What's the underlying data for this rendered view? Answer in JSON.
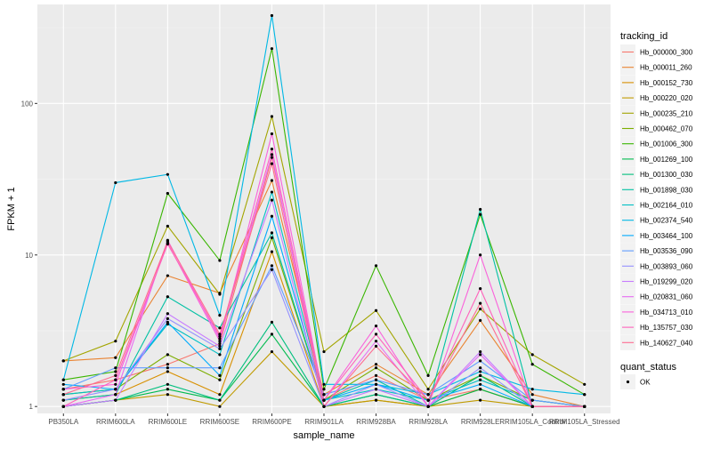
{
  "chart_data": {
    "type": "line",
    "xlabel": "sample_name",
    "ylabel": "FPKM + 1",
    "y_scale": "log10",
    "ylim": [
      0.9,
      450
    ],
    "y_ticks": [
      {
        "value": 1,
        "label": "1"
      },
      {
        "value": 10,
        "label": "10"
      },
      {
        "value": 100,
        "label": "100"
      }
    ],
    "categories": [
      "PB350LA",
      "RRIM600LA",
      "RRIM600LE",
      "RRIM600SE",
      "RRIM600PE",
      "RRIM901LA",
      "RRIM928BA",
      "RRIM928LA",
      "RRIM928LE",
      "RRIM105LA_Control",
      "RRIM105LA_Stressed"
    ],
    "grid": true,
    "legend": {
      "title": "tracking_id",
      "position": "right"
    },
    "shape_legend": {
      "title": "quant_status",
      "items": [
        {
          "label": "OK"
        }
      ]
    },
    "series": [
      {
        "name": "Hb_000000_300",
        "color": "#F8766D",
        "values": [
          1.3,
          1.5,
          1.9,
          2.6,
          44,
          1.1,
          1.6,
          1.1,
          1.3,
          1.0,
          1.0
        ]
      },
      {
        "name": "Hb_000011_260",
        "color": "#EA8331",
        "values": [
          2.0,
          2.1,
          7.3,
          5.6,
          31,
          1.2,
          1.9,
          1.2,
          3.7,
          1.2,
          1.0
        ]
      },
      {
        "name": "Hb_000152_730",
        "color": "#D89000",
        "values": [
          1.1,
          1.2,
          1.7,
          1.2,
          10.5,
          1.0,
          1.1,
          1.0,
          1.3,
          1.0,
          1.0
        ]
      },
      {
        "name": "Hb_000220_020",
        "color": "#C09B00",
        "values": [
          1.0,
          1.1,
          1.2,
          1.0,
          2.3,
          1.0,
          1.1,
          1.0,
          1.1,
          1.0,
          1.0
        ]
      },
      {
        "name": "Hb_000235_210",
        "color": "#A3A500",
        "values": [
          2.0,
          2.7,
          15.5,
          5.5,
          82,
          2.3,
          4.3,
          1.3,
          4.4,
          2.2,
          1.4
        ]
      },
      {
        "name": "Hb_000462_070",
        "color": "#7CAE00",
        "values": [
          1.2,
          1.3,
          2.2,
          1.5,
          13,
          1.1,
          1.8,
          1.1,
          1.6,
          1.1,
          1.0
        ]
      },
      {
        "name": "Hb_001006_300",
        "color": "#39B600",
        "values": [
          1.5,
          1.7,
          25.5,
          9.2,
          230,
          1.3,
          8.5,
          1.6,
          18.5,
          1.9,
          1.2
        ]
      },
      {
        "name": "Hb_001269_100",
        "color": "#00BB4E",
        "values": [
          1.0,
          1.1,
          1.3,
          1.1,
          3.0,
          1.0,
          1.2,
          1.0,
          1.3,
          1.0,
          1.0
        ]
      },
      {
        "name": "Hb_001300_030",
        "color": "#00BF7D",
        "values": [
          1.0,
          1.1,
          1.4,
          1.1,
          3.6,
          1.0,
          1.2,
          1.0,
          1.6,
          1.0,
          1.0
        ]
      },
      {
        "name": "Hb_001898_030",
        "color": "#00C1A3",
        "values": [
          1.1,
          1.2,
          5.3,
          3.3,
          14,
          1.1,
          1.5,
          1.0,
          20,
          1.0,
          1.0
        ]
      },
      {
        "name": "Hb_002164_010",
        "color": "#00BFC4",
        "values": [
          1.2,
          1.3,
          3.5,
          2.2,
          26,
          1.1,
          1.3,
          1.1,
          1.5,
          1.1,
          1.0
        ]
      },
      {
        "name": "Hb_002374_540",
        "color": "#00B8E5",
        "values": [
          1.5,
          30,
          34,
          4.0,
          380,
          1.4,
          1.4,
          1.2,
          1.7,
          1.3,
          1.2
        ]
      },
      {
        "name": "Hb_003464_100",
        "color": "#00ABFD",
        "values": [
          1.4,
          1.3,
          3.6,
          1.6,
          18,
          1.1,
          1.4,
          1.1,
          1.4,
          1.0,
          1.0
        ]
      },
      {
        "name": "Hb_003536_090",
        "color": "#619CFF",
        "values": [
          1.3,
          1.8,
          1.8,
          1.8,
          8.5,
          1.2,
          1.5,
          1.2,
          2.0,
          1.1,
          1.0
        ]
      },
      {
        "name": "Hb_003893_060",
        "color": "#9590FF",
        "values": [
          1.1,
          1.3,
          3.8,
          2.4,
          8.0,
          1.0,
          1.4,
          1.0,
          1.8,
          1.0,
          1.0
        ]
      },
      {
        "name": "Hb_019299_020",
        "color": "#C77CFF",
        "values": [
          1.0,
          1.1,
          4.1,
          2.5,
          23,
          1.0,
          1.3,
          1.0,
          2.3,
          1.0,
          1.0
        ]
      },
      {
        "name": "Hb_020831_060",
        "color": "#E76BF3",
        "values": [
          1.0,
          1.2,
          12.5,
          2.8,
          46,
          1.0,
          2.7,
          1.0,
          2.2,
          1.0,
          1.0
        ]
      },
      {
        "name": "Hb_034713_010",
        "color": "#FA62DB",
        "values": [
          1.3,
          1.4,
          12.0,
          2.7,
          63,
          1.1,
          3.4,
          1.0,
          10.0,
          1.0,
          1.0
        ]
      },
      {
        "name": "Hb_135757_030",
        "color": "#FF62BC",
        "values": [
          1.0,
          1.5,
          11.8,
          2.9,
          50,
          1.1,
          3.0,
          1.1,
          6.0,
          1.0,
          1.0
        ]
      },
      {
        "name": "Hb_140627_040",
        "color": "#FF6C91",
        "values": [
          1.2,
          1.6,
          12.3,
          3.0,
          40,
          1.0,
          2.5,
          1.1,
          4.8,
          1.0,
          1.0
        ]
      }
    ]
  }
}
